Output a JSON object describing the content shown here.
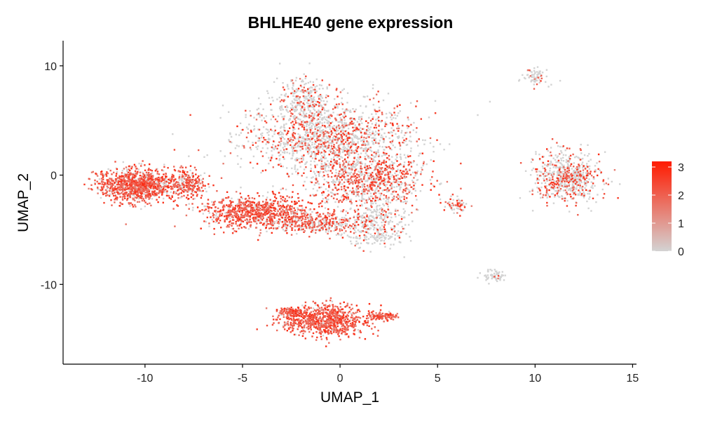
{
  "chart_data": {
    "type": "scatter",
    "title": "BHLHE40 gene expression",
    "xlabel": "UMAP_1",
    "ylabel": "UMAP_2",
    "xlim": [
      -14.2,
      15.2
    ],
    "ylim": [
      -17.3,
      12.3
    ],
    "xticks": [
      -10,
      -5,
      0,
      5,
      10,
      15
    ],
    "xtick_labels": [
      "-10",
      "-5",
      "0",
      "5",
      "10",
      "15"
    ],
    "yticks": [
      10,
      0,
      -10
    ],
    "ytick_labels": [
      "10",
      "0",
      "-10"
    ],
    "grid": false,
    "legend": {
      "position": "right",
      "min": 0,
      "max": 3.2,
      "ticks": [
        0,
        1,
        2,
        3
      ],
      "tick_labels": [
        "0",
        "1",
        "2",
        "3"
      ],
      "low_color": "#d3d3d3",
      "high_color": "#ff1a00"
    },
    "clusters": [
      {
        "name": "cluster-upper-center",
        "cx": -0.5,
        "cy": 3.5,
        "rx": 4.3,
        "ry": 3.2,
        "n": 1500,
        "expr_frac": 0.32
      },
      {
        "name": "cluster-upper-top",
        "cx": -1.8,
        "cy": 7.0,
        "rx": 1.3,
        "ry": 1.8,
        "n": 250,
        "expr_frac": 0.2
      },
      {
        "name": "cluster-center-band",
        "cx": 1.4,
        "cy": -0.5,
        "rx": 2.9,
        "ry": 2.6,
        "n": 900,
        "expr_frac": 0.55
      },
      {
        "name": "cluster-lower-tail",
        "cx": 1.8,
        "cy": -4.6,
        "rx": 1.6,
        "ry": 2.0,
        "n": 350,
        "expr_frac": 0.15
      },
      {
        "name": "cluster-left-band",
        "cx": -4.3,
        "cy": -3.4,
        "rx": 2.7,
        "ry": 1.5,
        "n": 850,
        "expr_frac": 0.85
      },
      {
        "name": "cluster-left-bridge",
        "cx": -1.2,
        "cy": -4.4,
        "rx": 2.2,
        "ry": 0.9,
        "n": 350,
        "expr_frac": 0.55
      },
      {
        "name": "cluster-far-left",
        "cx": -10.4,
        "cy": -0.9,
        "rx": 2.0,
        "ry": 1.5,
        "n": 1000,
        "expr_frac": 0.8
      },
      {
        "name": "cluster-far-left-tail",
        "cx": -7.8,
        "cy": -0.8,
        "rx": 0.9,
        "ry": 1.3,
        "n": 250,
        "expr_frac": 0.7
      },
      {
        "name": "cluster-right",
        "cx": 11.7,
        "cy": -0.2,
        "rx": 1.6,
        "ry": 2.2,
        "n": 650,
        "expr_frac": 0.35
      },
      {
        "name": "cluster-small-mid",
        "cx": 5.9,
        "cy": -2.8,
        "rx": 0.6,
        "ry": 0.8,
        "n": 60,
        "expr_frac": 0.5
      },
      {
        "name": "cluster-top-right",
        "cx": 10.0,
        "cy": 9.0,
        "rx": 0.6,
        "ry": 0.8,
        "n": 70,
        "expr_frac": 0.15
      },
      {
        "name": "cluster-small-right",
        "cx": 7.9,
        "cy": -9.3,
        "rx": 0.6,
        "ry": 0.5,
        "n": 60,
        "expr_frac": 0.1
      },
      {
        "name": "cluster-bottom",
        "cx": -0.8,
        "cy": -13.3,
        "rx": 2.3,
        "ry": 1.4,
        "n": 800,
        "expr_frac": 0.92
      },
      {
        "name": "cluster-bottom-arm",
        "cx": 2.2,
        "cy": -12.9,
        "rx": 0.8,
        "ry": 0.35,
        "n": 120,
        "expr_frac": 0.95
      },
      {
        "name": "cluster-bottom-left",
        "cx": -2.4,
        "cy": -12.5,
        "rx": 0.7,
        "ry": 0.4,
        "n": 100,
        "expr_frac": 0.9
      }
    ]
  }
}
